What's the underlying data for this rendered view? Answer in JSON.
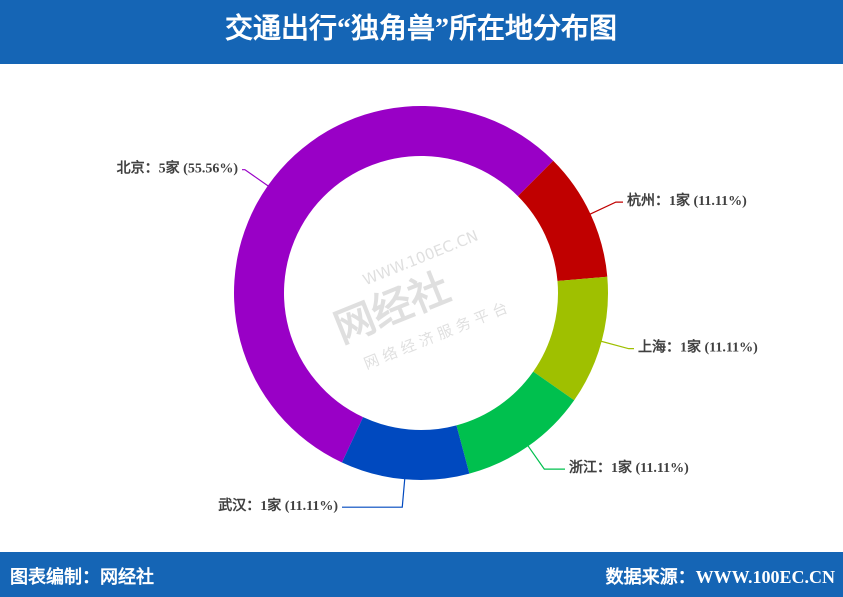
{
  "chart_data": {
    "type": "donut",
    "title": "交通出行“独角兽”所在地分布图",
    "categories": [
      "北京",
      "杭州",
      "上海",
      "浙江",
      "武汉"
    ],
    "values": [
      5,
      1,
      1,
      1,
      1
    ],
    "value_labels": [
      "：5家 (55.56%)",
      "：1家 (11.11%)",
      "：1家 (11.11%)",
      "：1家 (11.11%)",
      "：1家 (11.11%)"
    ],
    "colors": [
      "#9900c6",
      "#c00000",
      "#9fc000",
      "#00c04e",
      "#0049bf"
    ]
  },
  "watermark": {
    "brand": "网经社",
    "url": "WWW.100EC.CN",
    "slogan": "网 络 经 济 服 务 平 台"
  },
  "footer": {
    "left": "图表编制：网经社",
    "right": "数据来源：WWW.100EC.CN"
  }
}
